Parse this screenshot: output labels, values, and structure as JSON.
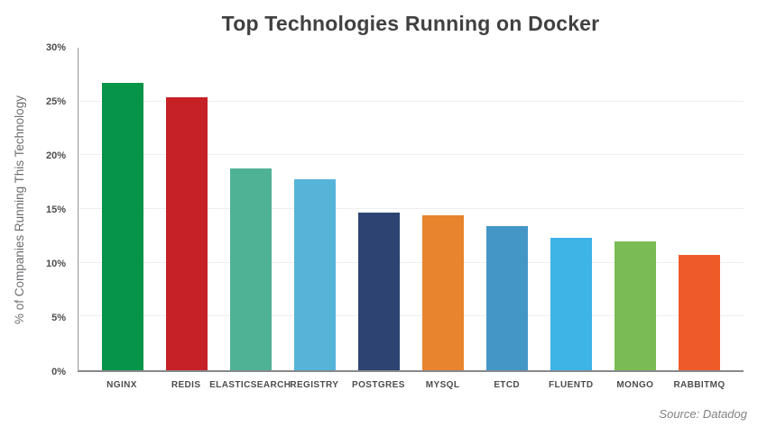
{
  "title": "Top Technologies Running on Docker",
  "source": "Source: Datadog",
  "chart_data": {
    "type": "bar",
    "title": "Top Technologies Running on Docker",
    "xlabel": "",
    "ylabel": "% of Companies Running This Technology",
    "categories": [
      "NGINX",
      "REDIS",
      "ELASTICSEARCH",
      "REGISTRY",
      "POSTGRES",
      "MYSQL",
      "ETCD",
      "FLUENTD",
      "MONGO",
      "RABBITMQ"
    ],
    "values": [
      26.7,
      25.4,
      18.8,
      17.8,
      14.7,
      14.4,
      13.4,
      12.3,
      12.0,
      10.7
    ],
    "bar_colors": [
      "#069449",
      "#c62127",
      "#4fb294",
      "#56b4d9",
      "#2d4372",
      "#e8842d",
      "#4496c7",
      "#3eb3e5",
      "#7abc53",
      "#ef5b28"
    ],
    "ylim": [
      0,
      30
    ],
    "ytick_values": [
      0,
      5,
      10,
      15,
      20,
      25,
      30
    ],
    "ytick_labels": [
      "0%",
      "5%",
      "10%",
      "15%",
      "20%",
      "25%",
      "30%"
    ],
    "grid": true,
    "legend": false,
    "annotation": "Source: Datadog"
  }
}
